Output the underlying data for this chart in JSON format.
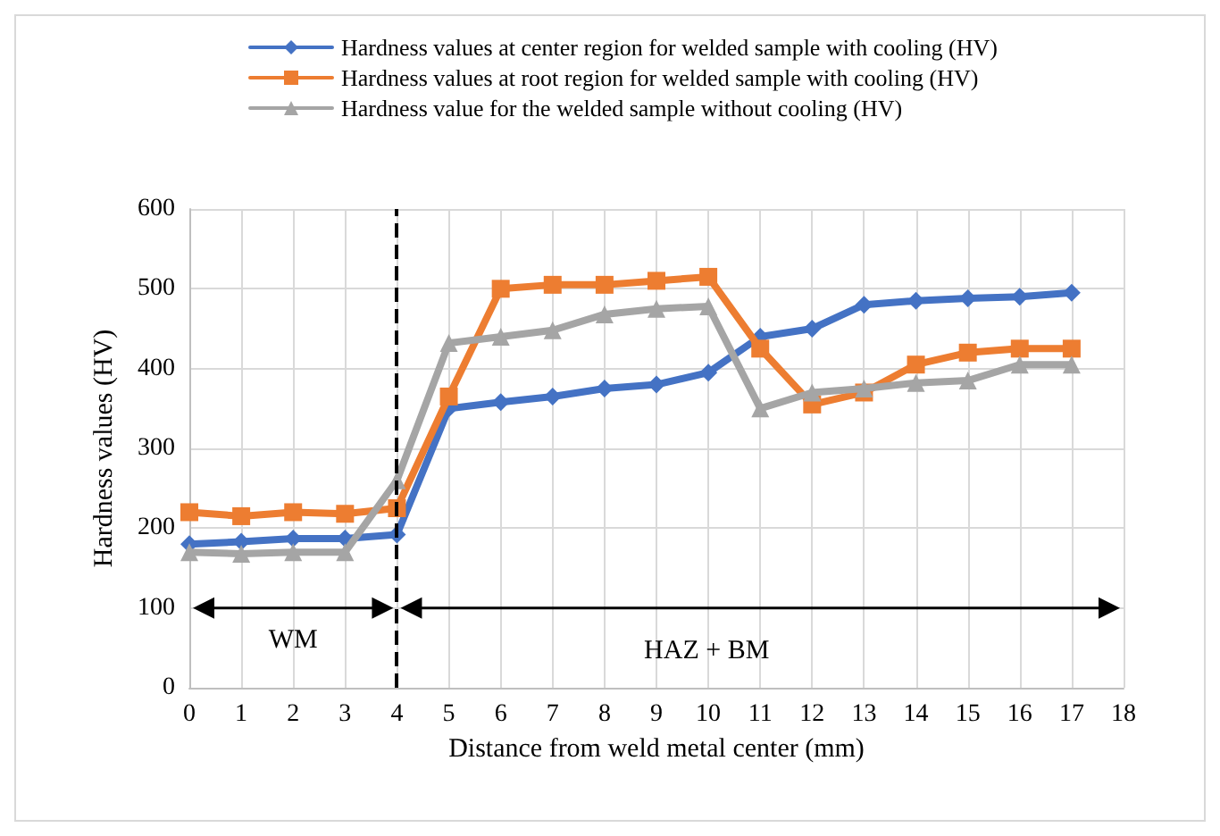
{
  "chart_data": {
    "type": "line",
    "xlabel": "Distance from weld metal center (mm)",
    "ylabel": "Hardness values (HV)",
    "x": [
      0,
      1,
      2,
      3,
      4,
      5,
      6,
      7,
      8,
      9,
      10,
      11,
      12,
      13,
      14,
      15,
      16,
      17
    ],
    "series": [
      {
        "name": "Hardness values at center region for welded sample with cooling (HV)",
        "color": "#4472c4",
        "marker": "diamond",
        "values": [
          180,
          183,
          187,
          187,
          192,
          350,
          358,
          365,
          375,
          380,
          395,
          440,
          450,
          480,
          485,
          488,
          490,
          495
        ]
      },
      {
        "name": "Hardness values at root region for welded sample with cooling (HV)",
        "color": "#ed7d31",
        "marker": "square",
        "values": [
          220,
          215,
          220,
          218,
          225,
          365,
          500,
          505,
          505,
          510,
          515,
          425,
          355,
          370,
          405,
          420,
          425,
          425
        ]
      },
      {
        "name": "Hardness value for the welded sample without cooling (HV)",
        "color": "#a5a5a5",
        "marker": "triangle",
        "values": [
          170,
          168,
          170,
          170,
          260,
          432,
          440,
          448,
          468,
          475,
          478,
          350,
          370,
          375,
          382,
          385,
          405,
          405
        ]
      }
    ],
    "xlim": [
      0,
      18
    ],
    "xticks": [
      0,
      1,
      2,
      3,
      4,
      5,
      6,
      7,
      8,
      9,
      10,
      11,
      12,
      13,
      14,
      15,
      16,
      17,
      18
    ],
    "ylim": [
      0,
      600
    ],
    "yticks": [
      0,
      100,
      200,
      300,
      400,
      500,
      600
    ],
    "grid": true,
    "legend": "top",
    "line_style": "solid",
    "ref_lines": [
      {
        "axis": "x",
        "value": 4,
        "label": null,
        "color": "#000000",
        "line_style": "dashed"
      }
    ],
    "annotations": [
      "WM",
      "HAZ + BM"
    ]
  }
}
